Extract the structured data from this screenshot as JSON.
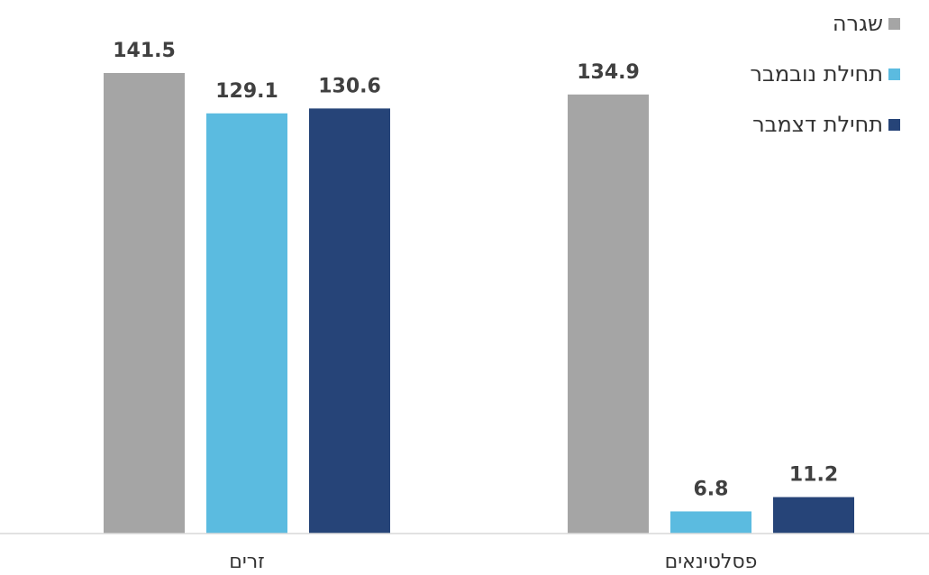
{
  "chart_data": {
    "type": "bar",
    "categories": [
      "זרים",
      "פסלטינאים"
    ],
    "series": [
      {
        "name": "שגרה",
        "color": "#a5a5a5",
        "values": [
          141.5,
          134.9
        ]
      },
      {
        "name": "תחילת נובמבר",
        "color": "#5bbbe0",
        "values": [
          129.1,
          6.8
        ]
      },
      {
        "name": "תחילת דצמבר",
        "color": "#264478",
        "values": [
          130.6,
          11.2
        ]
      }
    ],
    "value_labels": [
      [
        "141.5",
        "134.9"
      ],
      [
        "129.1",
        "6.8"
      ],
      [
        "130.6",
        "11.2"
      ]
    ],
    "ylim": [
      0,
      160
    ],
    "grid": false,
    "legend_position": "top-right",
    "title": "",
    "xlabel": "",
    "ylabel": ""
  }
}
